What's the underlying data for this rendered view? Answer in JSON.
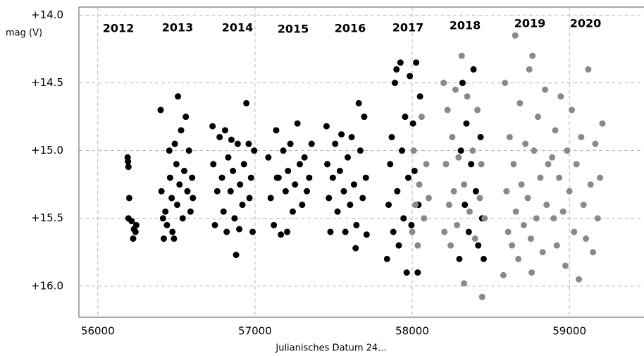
{
  "chart_data": {
    "type": "scatter",
    "x_label": "Julianisches Datum 24...",
    "y_label": "mag (V)",
    "annotations": [
      "2012",
      "2013",
      "2014",
      "2015",
      "2016",
      "2017",
      "2018",
      "2019",
      "2020"
    ],
    "xlim": [
      55880,
      59470
    ],
    "ylim": [
      13.94,
      16.23
    ],
    "y_inverted": true,
    "xticks": [
      56000,
      57000,
      58000,
      59000
    ],
    "yticks": [
      {
        "value": 14,
        "label": "+14.0"
      },
      {
        "value": 14.5,
        "label": "+14.5"
      },
      {
        "value": 15,
        "label": "+15.0"
      },
      {
        "value": 15.5,
        "label": "+15.5"
      },
      {
        "value": 16,
        "label": "+16.0"
      }
    ],
    "grid": true,
    "series": [
      {
        "color": "#000000",
        "x": [
          56190,
          56195,
          56200,
          56195,
          56215,
          56230,
          56245,
          56225,
          56240,
          56192,
          56400,
          56405,
          56415,
          56420,
          56430,
          56440,
          56460,
          56470,
          56475,
          56490,
          56500,
          56505,
          56510,
          56520,
          56530,
          56540,
          56550,
          56560,
          56570,
          56580,
          56590,
          56600,
          56605,
          56485,
          56455,
          56730,
          56735,
          56745,
          56760,
          56775,
          56790,
          56800,
          56810,
          56820,
          56830,
          56845,
          56860,
          56870,
          56880,
          56890,
          56905,
          56920,
          56930,
          56945,
          56960,
          56965,
          56975,
          56985,
          56995,
          56850,
          56900,
          57085,
          57100,
          57120,
          57135,
          57150,
          57165,
          57180,
          57195,
          57210,
          57225,
          57240,
          57255,
          57270,
          57285,
          57300,
          57315,
          57330,
          57345,
          57360,
          57205,
          57140,
          57455,
          57460,
          57470,
          57480,
          57495,
          57510,
          57525,
          57540,
          57550,
          57565,
          57575,
          57590,
          57605,
          57615,
          57630,
          57645,
          57660,
          57670,
          57685,
          57695,
          57705,
          57710,
          57640,
          57840,
          57850,
          57860,
          57870,
          57880,
          57890,
          57900,
          57905,
          57915,
          57925,
          57935,
          57945,
          57955,
          57965,
          57975,
          57985,
          57995,
          58005,
          58015,
          58025,
          58035,
          58040,
          58050,
          58300,
          58310,
          58320,
          58335,
          58345,
          58360,
          58375,
          58390,
          58405,
          58420,
          58435,
          58445,
          58455
        ],
        "values": [
          15.05,
          15.12,
          15.35,
          15.5,
          15.52,
          15.58,
          15.55,
          15.65,
          15.6,
          15.08,
          14.7,
          15.3,
          15.5,
          15.65,
          15.45,
          15.55,
          15.2,
          15.35,
          15.6,
          14.95,
          15.1,
          15.4,
          14.6,
          15.25,
          14.85,
          15.5,
          15.15,
          14.75,
          15.3,
          15.0,
          15.45,
          15.2,
          15.35,
          15.65,
          15.0,
          14.82,
          15.1,
          15.55,
          15.3,
          14.9,
          15.2,
          15.45,
          14.85,
          15.6,
          15.05,
          15.3,
          15.15,
          15.5,
          15.77,
          14.95,
          15.25,
          15.4,
          15.1,
          14.65,
          14.95,
          15.35,
          15.2,
          15.6,
          15.0,
          14.92,
          15.58,
          15.05,
          15.35,
          15.55,
          14.85,
          15.2,
          15.62,
          15.0,
          15.3,
          15.15,
          14.95,
          15.45,
          15.25,
          14.8,
          15.1,
          15.4,
          15.05,
          15.3,
          15.2,
          14.95,
          15.6,
          15.2,
          14.82,
          15.1,
          15.35,
          15.6,
          15.2,
          14.95,
          15.45,
          15.15,
          14.88,
          15.3,
          15.6,
          15.05,
          15.4,
          14.9,
          15.25,
          15.55,
          14.65,
          15.0,
          15.35,
          14.75,
          15.2,
          15.62,
          15.72,
          15.8,
          15.4,
          15.1,
          14.9,
          15.6,
          14.5,
          14.4,
          15.3,
          15.7,
          14.35,
          15.0,
          15.5,
          14.75,
          15.9,
          15.2,
          14.45,
          15.55,
          14.8,
          15.15,
          14.35,
          15.9,
          15.4,
          14.6,
          15.8,
          15.0,
          14.5,
          15.4,
          14.8,
          15.6,
          15.1,
          14.4,
          15.3,
          15.7,
          14.9,
          15.5,
          15.8
        ]
      },
      {
        "color": "#898989",
        "x": [
          58000,
          58010,
          58020,
          58035,
          58045,
          58060,
          58075,
          58090,
          58105,
          58200,
          58205,
          58215,
          58225,
          58235,
          58245,
          58255,
          58265,
          58275,
          58285,
          58295,
          58315,
          58330,
          58350,
          58365,
          58385,
          58400,
          58415,
          58430,
          58440,
          58460,
          58330,
          58445,
          58580,
          58590,
          58600,
          58610,
          58620,
          58635,
          58645,
          58655,
          58660,
          58675,
          58685,
          58695,
          58710,
          58720,
          58735,
          58745,
          58755,
          58765,
          58775,
          58790,
          58800,
          58815,
          58830,
          58845,
          58855,
          58865,
          58760,
          58890,
          58900,
          58910,
          58920,
          58935,
          58945,
          58960,
          58975,
          58985,
          59000,
          59015,
          59030,
          59045,
          59060,
          59075,
          59090,
          59105,
          59120,
          59135,
          59150,
          59165,
          59180,
          59195,
          59210
        ],
        "values": [
          15.6,
          15.0,
          15.4,
          15.7,
          15.25,
          14.75,
          15.5,
          15.1,
          15.35,
          14.5,
          15.6,
          15.1,
          14.7,
          15.4,
          15.7,
          14.9,
          15.3,
          14.55,
          15.55,
          15.05,
          14.3,
          15.25,
          14.6,
          15.45,
          15.0,
          15.65,
          14.7,
          15.35,
          15.1,
          15.5,
          15.98,
          16.08,
          15.92,
          14.5,
          15.3,
          15.6,
          14.9,
          15.7,
          15.1,
          14.15,
          15.45,
          15.8,
          14.65,
          15.25,
          15.55,
          14.95,
          15.35,
          14.4,
          15.65,
          14.3,
          15.0,
          15.5,
          14.75,
          15.2,
          15.75,
          14.55,
          15.4,
          15.1,
          15.9,
          15.05,
          15.5,
          14.85,
          15.7,
          15.2,
          14.6,
          15.45,
          15.85,
          15.0,
          15.3,
          14.7,
          15.6,
          15.1,
          15.95,
          14.9,
          15.4,
          15.65,
          14.4,
          15.25,
          15.75,
          14.95,
          15.5,
          15.2,
          14.8
        ]
      }
    ]
  }
}
